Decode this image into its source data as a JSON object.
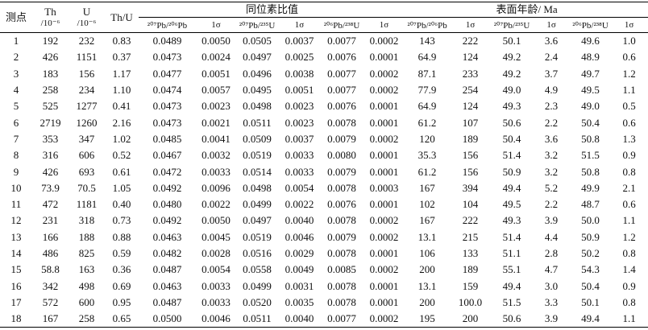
{
  "table": {
    "header": {
      "point": "测点",
      "th": [
        "Th",
        "/10⁻⁶"
      ],
      "u": [
        "U",
        "/10⁻⁶"
      ],
      "thu": "Th/U",
      "ratio_group": "同位素比值",
      "age_group": "表面年龄/ Ma",
      "sub": [
        "²⁰⁷Pb/²⁰⁶Pb",
        "1σ",
        "²⁰⁷Pb/²³⁵U",
        "1σ",
        "²⁰⁶Pb/²³⁸U",
        "1σ",
        "²⁰⁷Pb/²⁰⁶Pb",
        "1σ",
        "²⁰⁷Pb/²³⁵U",
        "1σ",
        "²⁰⁶Pb/²³⁸U",
        "1σ"
      ]
    },
    "rows": [
      [
        "1",
        "192",
        "232",
        "0.83",
        "0.0489",
        "0.0050",
        "0.0505",
        "0.0037",
        "0.0077",
        "0.0002",
        "143",
        "222",
        "50.1",
        "3.6",
        "49.6",
        "1.0"
      ],
      [
        "2",
        "426",
        "1151",
        "0.37",
        "0.0473",
        "0.0024",
        "0.0497",
        "0.0025",
        "0.0076",
        "0.0001",
        "64.9",
        "124",
        "49.2",
        "2.4",
        "48.9",
        "0.6"
      ],
      [
        "3",
        "183",
        "156",
        "1.17",
        "0.0477",
        "0.0051",
        "0.0496",
        "0.0038",
        "0.0077",
        "0.0002",
        "87.1",
        "233",
        "49.2",
        "3.7",
        "49.7",
        "1.2"
      ],
      [
        "4",
        "258",
        "234",
        "1.10",
        "0.0474",
        "0.0057",
        "0.0495",
        "0.0051",
        "0.0077",
        "0.0002",
        "77.9",
        "254",
        "49.0",
        "4.9",
        "49.5",
        "1.1"
      ],
      [
        "5",
        "525",
        "1277",
        "0.41",
        "0.0473",
        "0.0023",
        "0.0498",
        "0.0023",
        "0.0076",
        "0.0001",
        "64.9",
        "124",
        "49.3",
        "2.3",
        "49.0",
        "0.5"
      ],
      [
        "6",
        "2719",
        "1260",
        "2.16",
        "0.0473",
        "0.0021",
        "0.0511",
        "0.0023",
        "0.0078",
        "0.0001",
        "61.2",
        "107",
        "50.6",
        "2.2",
        "50.4",
        "0.6"
      ],
      [
        "7",
        "353",
        "347",
        "1.02",
        "0.0485",
        "0.0041",
        "0.0509",
        "0.0037",
        "0.0079",
        "0.0002",
        "120",
        "189",
        "50.4",
        "3.6",
        "50.8",
        "1.3"
      ],
      [
        "8",
        "316",
        "606",
        "0.52",
        "0.0467",
        "0.0032",
        "0.0519",
        "0.0033",
        "0.0080",
        "0.0001",
        "35.3",
        "156",
        "51.4",
        "3.2",
        "51.5",
        "0.9"
      ],
      [
        "9",
        "426",
        "693",
        "0.61",
        "0.0472",
        "0.0033",
        "0.0514",
        "0.0033",
        "0.0079",
        "0.0001",
        "61.2",
        "156",
        "50.9",
        "3.2",
        "50.8",
        "0.8"
      ],
      [
        "10",
        "73.9",
        "70.5",
        "1.05",
        "0.0492",
        "0.0096",
        "0.0498",
        "0.0054",
        "0.0078",
        "0.0003",
        "167",
        "394",
        "49.4",
        "5.2",
        "49.9",
        "2.1"
      ],
      [
        "11",
        "472",
        "1181",
        "0.40",
        "0.0480",
        "0.0022",
        "0.0499",
        "0.0022",
        "0.0076",
        "0.0001",
        "102",
        "104",
        "49.5",
        "2.2",
        "48.7",
        "0.6"
      ],
      [
        "12",
        "231",
        "318",
        "0.73",
        "0.0492",
        "0.0050",
        "0.0497",
        "0.0040",
        "0.0078",
        "0.0002",
        "167",
        "222",
        "49.3",
        "3.9",
        "50.0",
        "1.1"
      ],
      [
        "13",
        "166",
        "188",
        "0.88",
        "0.0463",
        "0.0045",
        "0.0519",
        "0.0046",
        "0.0079",
        "0.0002",
        "13.1",
        "215",
        "51.4",
        "4.4",
        "50.9",
        "1.2"
      ],
      [
        "14",
        "486",
        "825",
        "0.59",
        "0.0482",
        "0.0028",
        "0.0516",
        "0.0029",
        "0.0078",
        "0.0001",
        "106",
        "133",
        "51.1",
        "2.8",
        "50.2",
        "0.8"
      ],
      [
        "15",
        "58.8",
        "163",
        "0.36",
        "0.0487",
        "0.0054",
        "0.0558",
        "0.0049",
        "0.0085",
        "0.0002",
        "200",
        "189",
        "55.1",
        "4.7",
        "54.3",
        "1.4"
      ],
      [
        "16",
        "342",
        "498",
        "0.69",
        "0.0463",
        "0.0033",
        "0.0499",
        "0.0031",
        "0.0078",
        "0.0001",
        "13.1",
        "159",
        "49.4",
        "3.0",
        "50.4",
        "0.9"
      ],
      [
        "17",
        "572",
        "600",
        "0.95",
        "0.0487",
        "0.0033",
        "0.0520",
        "0.0035",
        "0.0078",
        "0.0001",
        "200",
        "100.0",
        "51.5",
        "3.3",
        "50.1",
        "0.8"
      ],
      [
        "18",
        "167",
        "258",
        "0.65",
        "0.0500",
        "0.0046",
        "0.0511",
        "0.0040",
        "0.0077",
        "0.0002",
        "195",
        "200",
        "50.6",
        "3.9",
        "49.4",
        "1.1"
      ]
    ]
  }
}
